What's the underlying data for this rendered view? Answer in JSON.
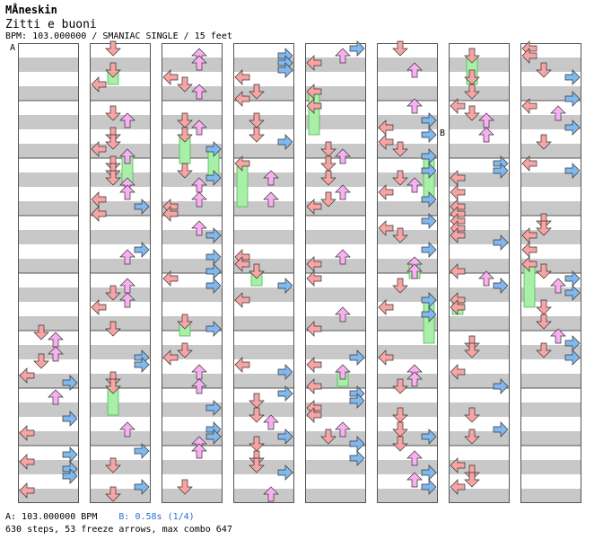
{
  "header": {
    "artist": "MÅneskin",
    "title": "Zitti e buoni",
    "meta": "BPM: 103.000000 / SMANIAC SINGLE / 15 feet"
  },
  "markers": {
    "a": "A",
    "b": "B"
  },
  "footer": {
    "bpm_a": "A: 103.000000 BPM",
    "bpm_b": "B: 0.58s (1/4)",
    "stats": "630 steps, 53 freeze arrows, max combo 647"
  },
  "colors": {
    "left": "#f8a4a4",
    "down": "#f8a4a4",
    "up": "#f8b0f0",
    "right": "#80b8f0",
    "quarter": "#f4a0a0",
    "eighth": "#a8c8f0",
    "freeze": "#a8f0a8",
    "stripe": "#c8c8c8"
  }
}
